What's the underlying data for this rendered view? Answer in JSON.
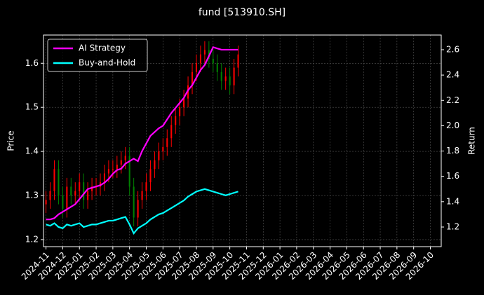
{
  "chart_data": {
    "type": "candlestick",
    "title": "fund [513910.SH]",
    "ylabel": "Price",
    "y2label": "Return",
    "x": [
      0,
      0.25,
      0.5,
      0.75,
      1,
      1.25,
      1.5,
      1.75,
      2,
      2.25,
      2.5,
      2.75,
      3,
      3.25,
      3.5,
      3.75,
      4,
      4.25,
      4.5,
      4.75,
      5,
      5.25,
      5.5,
      5.75,
      6,
      6.25,
      6.5,
      6.75,
      7,
      7.25,
      7.5,
      7.75,
      8,
      8.25,
      8.5,
      8.75,
      9,
      9.25,
      9.5,
      9.75,
      10,
      10.25,
      10.5,
      10.75,
      11,
      11.25,
      11.5
    ],
    "open": [
      1.28,
      1.29,
      1.31,
      1.36,
      1.3,
      1.27,
      1.32,
      1.3,
      1.31,
      1.33,
      1.29,
      1.31,
      1.32,
      1.32,
      1.33,
      1.35,
      1.36,
      1.36,
      1.37,
      1.38,
      1.39,
      1.32,
      1.25,
      1.29,
      1.31,
      1.33,
      1.36,
      1.38,
      1.4,
      1.41,
      1.43,
      1.46,
      1.48,
      1.5,
      1.52,
      1.55,
      1.58,
      1.6,
      1.62,
      1.63,
      1.61,
      1.6,
      1.58,
      1.56,
      1.57,
      1.55,
      1.59
    ],
    "high": [
      1.31,
      1.33,
      1.38,
      1.38,
      1.32,
      1.34,
      1.34,
      1.33,
      1.35,
      1.35,
      1.33,
      1.34,
      1.34,
      1.35,
      1.37,
      1.38,
      1.38,
      1.39,
      1.4,
      1.41,
      1.41,
      1.34,
      1.31,
      1.33,
      1.35,
      1.38,
      1.4,
      1.42,
      1.43,
      1.45,
      1.48,
      1.5,
      1.52,
      1.54,
      1.57,
      1.6,
      1.62,
      1.64,
      1.65,
      1.65,
      1.63,
      1.62,
      1.6,
      1.59,
      1.59,
      1.61,
      1.64
    ],
    "low": [
      1.26,
      1.27,
      1.29,
      1.28,
      1.25,
      1.25,
      1.28,
      1.28,
      1.29,
      1.27,
      1.27,
      1.29,
      1.3,
      1.3,
      1.31,
      1.33,
      1.34,
      1.34,
      1.35,
      1.36,
      1.3,
      1.23,
      1.23,
      1.27,
      1.29,
      1.31,
      1.34,
      1.36,
      1.38,
      1.39,
      1.41,
      1.44,
      1.46,
      1.48,
      1.5,
      1.53,
      1.56,
      1.58,
      1.6,
      1.59,
      1.58,
      1.56,
      1.54,
      1.54,
      1.53,
      1.53,
      1.57
    ],
    "close": [
      1.29,
      1.31,
      1.36,
      1.3,
      1.27,
      1.32,
      1.3,
      1.31,
      1.33,
      1.29,
      1.31,
      1.32,
      1.32,
      1.33,
      1.35,
      1.36,
      1.36,
      1.37,
      1.38,
      1.39,
      1.32,
      1.25,
      1.29,
      1.31,
      1.33,
      1.36,
      1.38,
      1.4,
      1.41,
      1.43,
      1.46,
      1.48,
      1.5,
      1.52,
      1.55,
      1.58,
      1.6,
      1.62,
      1.63,
      1.61,
      1.6,
      1.58,
      1.56,
      1.57,
      1.55,
      1.59,
      1.62
    ],
    "up_color": "#ff0000",
    "down_color": "#008000",
    "series": [
      {
        "name": "AI Strategy",
        "color": "#ff00ff",
        "axis": "y2",
        "values": [
          1.26,
          1.26,
          1.27,
          1.3,
          1.32,
          1.34,
          1.36,
          1.38,
          1.42,
          1.46,
          1.5,
          1.51,
          1.52,
          1.53,
          1.55,
          1.58,
          1.62,
          1.65,
          1.66,
          1.7,
          1.72,
          1.74,
          1.72,
          1.8,
          1.86,
          1.92,
          1.95,
          1.98,
          2.0,
          2.05,
          2.1,
          2.14,
          2.18,
          2.22,
          2.28,
          2.32,
          2.38,
          2.44,
          2.48,
          2.55,
          2.62,
          2.61,
          2.6,
          2.6,
          2.6,
          2.6,
          2.6
        ]
      },
      {
        "name": "Buy-and-Hold",
        "color": "#00ffff",
        "axis": "y2",
        "values": [
          1.22,
          1.21,
          1.23,
          1.2,
          1.19,
          1.22,
          1.21,
          1.22,
          1.23,
          1.2,
          1.21,
          1.22,
          1.22,
          1.23,
          1.24,
          1.25,
          1.25,
          1.26,
          1.27,
          1.28,
          1.22,
          1.15,
          1.19,
          1.21,
          1.23,
          1.26,
          1.28,
          1.3,
          1.31,
          1.33,
          1.35,
          1.37,
          1.39,
          1.41,
          1.44,
          1.46,
          1.48,
          1.49,
          1.5,
          1.49,
          1.48,
          1.47,
          1.46,
          1.45,
          1.46,
          1.47,
          1.48
        ]
      }
    ],
    "xlim": [
      -0.15,
      23.65
    ],
    "xticks": [
      {
        "value": 0,
        "label": "2024-11"
      },
      {
        "value": 1,
        "label": "2024-12"
      },
      {
        "value": 2,
        "label": "2025-01"
      },
      {
        "value": 3,
        "label": "2025-02"
      },
      {
        "value": 4,
        "label": "2025-03"
      },
      {
        "value": 5,
        "label": "2025-04"
      },
      {
        "value": 6,
        "label": "2025-05"
      },
      {
        "value": 7,
        "label": "2025-06"
      },
      {
        "value": 8,
        "label": "2025-07"
      },
      {
        "value": 9,
        "label": "2025-08"
      },
      {
        "value": 10,
        "label": "2025-09"
      },
      {
        "value": 11,
        "label": "2025-10"
      },
      {
        "value": 12,
        "label": "2025-11"
      },
      {
        "value": 13,
        "label": "2025-12"
      },
      {
        "value": 14,
        "label": "2026-01"
      },
      {
        "value": 15,
        "label": "2026-02"
      },
      {
        "value": 16,
        "label": "2026-03"
      },
      {
        "value": 17,
        "label": "2026-04"
      },
      {
        "value": 18,
        "label": "2026-05"
      },
      {
        "value": 19,
        "label": "2026-06"
      },
      {
        "value": 20,
        "label": "2026-07"
      },
      {
        "value": 21,
        "label": "2026-08"
      },
      {
        "value": 22,
        "label": "2026-09"
      },
      {
        "value": 23,
        "label": "2026-10"
      }
    ],
    "ylim": [
      1.184,
      1.664
    ],
    "yticks": [
      1.2,
      1.3,
      1.4,
      1.5,
      1.6
    ],
    "y2lim": [
      1.045,
      2.716
    ],
    "y2ticks": [
      1.2,
      1.4,
      1.6,
      1.8,
      {
        "value": 2,
        "label": "2.0"
      },
      2.2,
      2.4,
      2.6
    ],
    "grid": true,
    "legend": "upper left"
  }
}
